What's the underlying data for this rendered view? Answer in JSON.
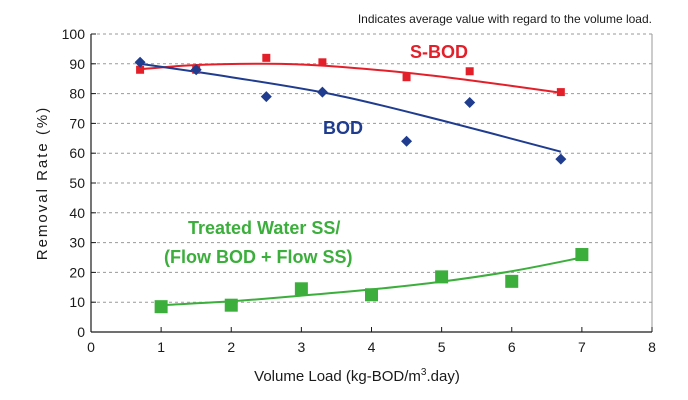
{
  "chart_data": {
    "type": "scatter",
    "note": "Indicates average value with regard to the volume load.",
    "xlabel_main": "Volume Load (kg-BOD/m",
    "xlabel_sup": "3",
    "xlabel_tail": ".day)",
    "ylabel": "Removal Rate (%)",
    "xlim": [
      0,
      8
    ],
    "ylim": [
      0,
      100
    ],
    "x_ticks": [
      "0",
      "1",
      "2",
      "3",
      "4",
      "5",
      "6",
      "7",
      "8"
    ],
    "y_ticks": [
      "0",
      "10",
      "20",
      "30",
      "40",
      "50",
      "60",
      "70",
      "80",
      "90",
      "100"
    ],
    "grid": "horizontal dashed",
    "series": [
      {
        "name": "S-BOD",
        "color": "#e3202a",
        "marker": "square-small",
        "points": [
          [
            0.7,
            88
          ],
          [
            1.5,
            88
          ],
          [
            2.5,
            92
          ],
          [
            3.3,
            90.5
          ],
          [
            4.5,
            85.5
          ],
          [
            5.4,
            87.5
          ],
          [
            6.7,
            80.5
          ]
        ],
        "trend": [
          [
            0.7,
            88.2
          ],
          [
            1.5,
            89.6
          ],
          [
            2.5,
            90.0
          ],
          [
            3.3,
            89.4
          ],
          [
            4.5,
            87.0
          ],
          [
            5.4,
            84.5
          ],
          [
            6.7,
            80.3
          ]
        ]
      },
      {
        "name": "BOD",
        "color": "#1f3c8f",
        "marker": "diamond",
        "points": [
          [
            0.7,
            90.5
          ],
          [
            1.5,
            88
          ],
          [
            2.5,
            79
          ],
          [
            3.3,
            80.5
          ],
          [
            4.5,
            64
          ],
          [
            5.4,
            77
          ],
          [
            6.7,
            58
          ]
        ],
        "trend": [
          [
            0.7,
            90.0
          ],
          [
            2.0,
            85.5
          ],
          [
            3.5,
            79.5
          ],
          [
            5.0,
            71.0
          ],
          [
            6.7,
            60.5
          ]
        ]
      },
      {
        "name_line1": "Treated Water SS/",
        "name_line2": "(Flow BOD + Flow SS)",
        "color": "#3cae3c",
        "marker": "square-large",
        "points": [
          [
            1,
            8.5
          ],
          [
            2,
            9
          ],
          [
            3,
            14.5
          ],
          [
            4,
            12.5
          ],
          [
            5,
            18.5
          ],
          [
            6,
            17
          ],
          [
            7,
            26
          ]
        ],
        "trend": [
          [
            1,
            9.0
          ],
          [
            2,
            10.3
          ],
          [
            3,
            12.2
          ],
          [
            4,
            14.3
          ],
          [
            5,
            16.9
          ],
          [
            6,
            20.4
          ],
          [
            7,
            25.0
          ]
        ]
      }
    ]
  }
}
